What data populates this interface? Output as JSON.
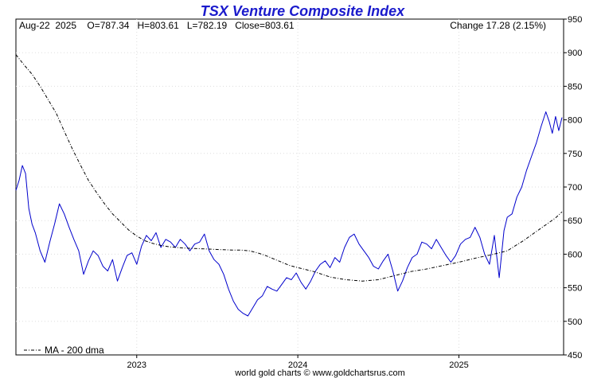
{
  "chart_data": {
    "type": "line",
    "title": "TSX Venture Composite Index",
    "ohlc_text": "Aug-22  2025    O=787.34   H=803.61   L=782.19   Close=803.61",
    "change_text": "Change 17.28 (2.15%)",
    "legend_label": "MA - 200 dma",
    "footer": "world gold charts © www.goldchartsrus.com",
    "ylim": [
      450,
      950
    ],
    "yticks": [
      450,
      500,
      550,
      600,
      650,
      700,
      750,
      800,
      850,
      900,
      950
    ],
    "xlim": [
      2022.25,
      2025.65
    ],
    "xticks": [
      {
        "label": "2023",
        "x": 2023.0
      },
      {
        "label": "2024",
        "x": 2024.0
      },
      {
        "label": "2025",
        "x": 2025.0
      }
    ],
    "series": [
      {
        "name": "TSX Venture Composite Index",
        "color": "#0000cc",
        "x": [
          2022.25,
          2022.27,
          2022.29,
          2022.31,
          2022.33,
          2022.35,
          2022.37,
          2022.4,
          2022.43,
          2022.46,
          2022.49,
          2022.52,
          2022.55,
          2022.58,
          2022.61,
          2022.64,
          2022.67,
          2022.7,
          2022.73,
          2022.76,
          2022.79,
          2022.82,
          2022.85,
          2022.88,
          2022.91,
          2022.94,
          2022.97,
          2023.0,
          2023.03,
          2023.06,
          2023.09,
          2023.12,
          2023.15,
          2023.18,
          2023.21,
          2023.24,
          2023.27,
          2023.3,
          2023.33,
          2023.36,
          2023.39,
          2023.42,
          2023.45,
          2023.48,
          2023.51,
          2023.54,
          2023.57,
          2023.6,
          2023.63,
          2023.66,
          2023.69,
          2023.72,
          2023.75,
          2023.78,
          2023.81,
          2023.84,
          2023.87,
          2023.9,
          2023.93,
          2023.96,
          2023.99,
          2024.02,
          2024.05,
          2024.08,
          2024.11,
          2024.14,
          2024.17,
          2024.2,
          2024.23,
          2024.26,
          2024.29,
          2024.32,
          2024.35,
          2024.38,
          2024.41,
          2024.44,
          2024.47,
          2024.5,
          2024.53,
          2024.56,
          2024.59,
          2024.62,
          2024.65,
          2024.68,
          2024.71,
          2024.74,
          2024.77,
          2024.8,
          2024.83,
          2024.86,
          2024.89,
          2024.92,
          2024.95,
          2024.98,
          2025.01,
          2025.04,
          2025.07,
          2025.1,
          2025.13,
          2025.16,
          2025.19,
          2025.22,
          2025.25,
          2025.28,
          2025.3,
          2025.33,
          2025.36,
          2025.39,
          2025.42,
          2025.45,
          2025.48,
          2025.51,
          2025.54,
          2025.56,
          2025.58,
          2025.6,
          2025.62,
          2025.64
        ],
        "y": [
          695,
          710,
          732,
          720,
          668,
          645,
          632,
          605,
          588,
          618,
          645,
          675,
          660,
          640,
          622,
          605,
          570,
          590,
          605,
          598,
          582,
          575,
          592,
          560,
          580,
          598,
          602,
          585,
          612,
          628,
          620,
          632,
          610,
          622,
          618,
          610,
          622,
          615,
          605,
          615,
          618,
          630,
          605,
          592,
          585,
          570,
          548,
          530,
          518,
          512,
          508,
          520,
          532,
          538,
          552,
          548,
          545,
          555,
          565,
          562,
          572,
          558,
          548,
          560,
          575,
          585,
          590,
          580,
          595,
          588,
          610,
          625,
          630,
          615,
          605,
          595,
          582,
          578,
          590,
          600,
          575,
          545,
          560,
          580,
          595,
          600,
          618,
          615,
          608,
          622,
          610,
          598,
          588,
          598,
          615,
          622,
          625,
          640,
          625,
          600,
          585,
          628,
          565,
          635,
          655,
          660,
          685,
          700,
          725,
          745,
          765,
          790,
          812,
          798,
          780,
          805,
          784,
          803.61
        ]
      },
      {
        "name": "MA - 200 dma",
        "color": "#000000",
        "x": [
          2022.25,
          2022.3,
          2022.35,
          2022.4,
          2022.45,
          2022.5,
          2022.55,
          2022.6,
          2022.65,
          2022.7,
          2022.75,
          2022.8,
          2022.85,
          2022.9,
          2022.95,
          2023.0,
          2023.05,
          2023.1,
          2023.15,
          2023.2,
          2023.3,
          2023.4,
          2023.5,
          2023.6,
          2023.65,
          2023.7,
          2023.75,
          2023.8,
          2023.85,
          2023.9,
          2023.95,
          2024.0,
          2024.1,
          2024.2,
          2024.3,
          2024.4,
          2024.5,
          2024.6,
          2024.7,
          2024.8,
          2024.9,
          2025.0,
          2025.1,
          2025.2,
          2025.3,
          2025.4,
          2025.5,
          2025.6,
          2025.64
        ],
        "y": [
          897,
          882,
          868,
          850,
          830,
          810,
          783,
          757,
          733,
          710,
          692,
          675,
          660,
          648,
          636,
          627,
          620,
          616,
          613,
          611,
          609,
          608,
          607,
          606,
          606,
          605,
          602,
          598,
          593,
          588,
          583,
          580,
          574,
          566,
          562,
          560,
          562,
          568,
          574,
          578,
          583,
          588,
          594,
          599,
          605,
          620,
          637,
          654,
          663
        ]
      }
    ]
  }
}
